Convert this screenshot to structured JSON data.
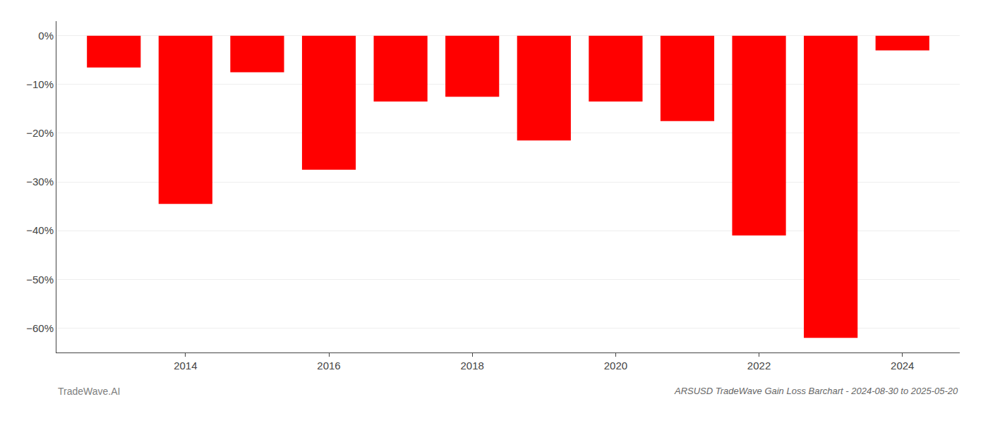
{
  "chart_data": {
    "type": "bar",
    "title": "ARSUSD TradeWave Gain Loss Barchart - 2024-08-30 to 2025-05-20",
    "annotations": [
      "TradeWave.AI"
    ],
    "x": [
      2013,
      2014,
      2015,
      2016,
      2017,
      2018,
      2019,
      2020,
      2021,
      2022,
      2023,
      2024
    ],
    "values": [
      -6.5,
      -34.5,
      -7.5,
      -27.5,
      -13.5,
      -12.5,
      -21.5,
      -13.5,
      -17.5,
      -41.0,
      -62.0,
      -3.0
    ],
    "color": "#ff0000",
    "xlim": [
      2012.2,
      2024.8
    ],
    "xticks": [
      2014,
      2016,
      2018,
      2020,
      2022,
      2024
    ],
    "ylim": [
      -65,
      3
    ],
    "yticks": [
      {
        "value": 0,
        "label": "0%"
      },
      {
        "value": -10,
        "label": "−10%"
      },
      {
        "value": -20,
        "label": "−20%"
      },
      {
        "value": -30,
        "label": "−30%"
      },
      {
        "value": -40,
        "label": "−40%"
      },
      {
        "value": -50,
        "label": "−50%"
      },
      {
        "value": -60,
        "label": "−60%"
      }
    ],
    "grid": true
  }
}
